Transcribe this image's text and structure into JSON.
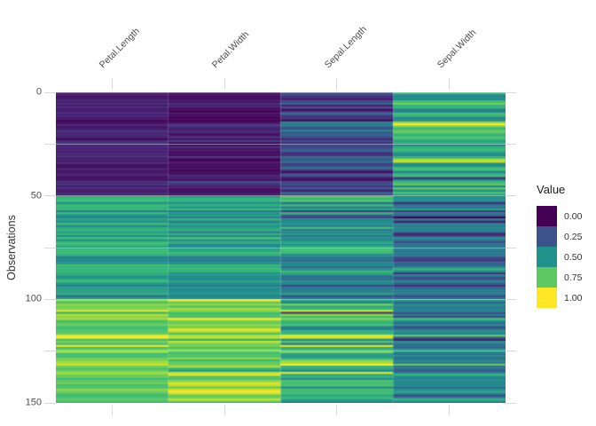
{
  "figure": {
    "background": "#ffffff",
    "grid_color": "#d9d9d9",
    "y_axis": {
      "title": "Observations",
      "tick_labels": [
        "0",
        "50",
        "100",
        "150"
      ],
      "tick_values": [
        0,
        50,
        100,
        150
      ]
    },
    "x_axis": {
      "labels": [
        "Petal.Length",
        "Petal.Width",
        "Sepal.Length",
        "Sepal.Width"
      ]
    },
    "legend": {
      "title": "Value",
      "entries": [
        {
          "label": "0.00",
          "color": "#440154"
        },
        {
          "label": "0.25",
          "color": "#3b528b"
        },
        {
          "label": "0.50",
          "color": "#21918c"
        },
        {
          "label": "0.75",
          "color": "#5ec962"
        },
        {
          "label": "1.00",
          "color": "#fde725"
        }
      ]
    }
  },
  "chart_data": {
    "type": "heatmap",
    "title": "",
    "ylabel": "Observations",
    "ylim": [
      0,
      150
    ],
    "y_major_ticks": [
      0,
      50,
      100,
      150
    ],
    "y_minor_ticks": [
      25,
      75,
      125
    ],
    "columns": [
      "Petal.Length",
      "Petal.Width",
      "Sepal.Length",
      "Sepal.Width"
    ],
    "colormap": "viridis",
    "value_scale": {
      "title": "Value",
      "range": [
        0,
        1
      ],
      "normalization": "per-column min-max rescale to 0-1"
    },
    "observations": [
      [
        1.4,
        0.2,
        5.1,
        3.5
      ],
      [
        1.4,
        0.2,
        4.9,
        3.0
      ],
      [
        1.3,
        0.2,
        4.7,
        3.2
      ],
      [
        1.5,
        0.2,
        4.6,
        3.1
      ],
      [
        1.4,
        0.2,
        5.0,
        3.6
      ],
      [
        1.7,
        0.4,
        5.4,
        3.9
      ],
      [
        1.4,
        0.3,
        4.6,
        3.4
      ],
      [
        1.5,
        0.2,
        5.0,
        3.4
      ],
      [
        1.4,
        0.2,
        4.4,
        2.9
      ],
      [
        1.5,
        0.1,
        4.9,
        3.1
      ],
      [
        1.5,
        0.2,
        5.4,
        3.7
      ],
      [
        1.6,
        0.2,
        4.8,
        3.4
      ],
      [
        1.4,
        0.1,
        4.8,
        3.0
      ],
      [
        1.1,
        0.1,
        4.3,
        3.0
      ],
      [
        1.2,
        0.2,
        5.8,
        4.0
      ],
      [
        1.5,
        0.4,
        5.7,
        4.4
      ],
      [
        1.3,
        0.4,
        5.4,
        3.9
      ],
      [
        1.4,
        0.3,
        5.1,
        3.5
      ],
      [
        1.7,
        0.3,
        5.7,
        3.8
      ],
      [
        1.5,
        0.3,
        5.1,
        3.8
      ],
      [
        1.7,
        0.2,
        5.4,
        3.4
      ],
      [
        1.5,
        0.4,
        5.1,
        3.7
      ],
      [
        1.0,
        0.2,
        4.6,
        3.6
      ],
      [
        1.7,
        0.5,
        5.1,
        3.3
      ],
      [
        1.9,
        0.2,
        4.8,
        3.4
      ],
      [
        1.6,
        0.2,
        5.0,
        3.0
      ],
      [
        1.6,
        0.4,
        5.0,
        3.4
      ],
      [
        1.5,
        0.2,
        5.2,
        3.5
      ],
      [
        1.4,
        0.2,
        5.2,
        3.4
      ],
      [
        1.6,
        0.2,
        4.7,
        3.2
      ],
      [
        1.6,
        0.2,
        4.8,
        3.1
      ],
      [
        1.5,
        0.4,
        5.4,
        3.4
      ],
      [
        1.5,
        0.1,
        5.2,
        4.1
      ],
      [
        1.4,
        0.2,
        5.5,
        4.2
      ],
      [
        1.5,
        0.2,
        4.9,
        3.1
      ],
      [
        1.2,
        0.2,
        5.0,
        3.2
      ],
      [
        1.3,
        0.2,
        5.5,
        3.5
      ],
      [
        1.4,
        0.1,
        4.9,
        3.6
      ],
      [
        1.3,
        0.2,
        4.4,
        3.0
      ],
      [
        1.5,
        0.2,
        5.1,
        3.4
      ],
      [
        1.3,
        0.3,
        5.0,
        3.5
      ],
      [
        1.3,
        0.3,
        4.5,
        2.3
      ],
      [
        1.3,
        0.2,
        4.4,
        3.2
      ],
      [
        1.6,
        0.6,
        5.0,
        3.5
      ],
      [
        1.9,
        0.4,
        5.1,
        3.8
      ],
      [
        1.4,
        0.3,
        4.8,
        3.0
      ],
      [
        1.6,
        0.2,
        5.1,
        3.8
      ],
      [
        1.4,
        0.2,
        4.6,
        3.2
      ],
      [
        1.5,
        0.2,
        5.3,
        3.7
      ],
      [
        1.4,
        0.2,
        5.0,
        3.3
      ],
      [
        4.7,
        1.4,
        7.0,
        3.2
      ],
      [
        4.5,
        1.5,
        6.4,
        3.2
      ],
      [
        4.9,
        1.5,
        6.9,
        3.1
      ],
      [
        4.0,
        1.3,
        5.5,
        2.3
      ],
      [
        4.6,
        1.5,
        6.5,
        2.8
      ],
      [
        4.5,
        1.3,
        5.7,
        2.8
      ],
      [
        4.7,
        1.6,
        6.3,
        3.3
      ],
      [
        3.3,
        1.0,
        4.9,
        2.4
      ],
      [
        4.6,
        1.3,
        6.6,
        2.9
      ],
      [
        3.9,
        1.4,
        5.2,
        2.7
      ],
      [
        3.5,
        1.0,
        5.0,
        2.0
      ],
      [
        4.2,
        1.5,
        5.9,
        3.0
      ],
      [
        4.0,
        1.0,
        6.0,
        2.2
      ],
      [
        4.7,
        1.4,
        6.1,
        2.9
      ],
      [
        3.6,
        1.3,
        5.6,
        2.9
      ],
      [
        4.4,
        1.4,
        6.7,
        3.1
      ],
      [
        4.5,
        1.5,
        5.6,
        3.0
      ],
      [
        4.1,
        1.0,
        5.8,
        2.7
      ],
      [
        4.5,
        1.5,
        6.2,
        2.2
      ],
      [
        3.9,
        1.1,
        5.6,
        2.5
      ],
      [
        4.8,
        1.8,
        5.9,
        3.2
      ],
      [
        4.0,
        1.3,
        6.1,
        2.8
      ],
      [
        4.9,
        1.5,
        6.3,
        2.5
      ],
      [
        4.7,
        1.2,
        6.1,
        2.8
      ],
      [
        4.3,
        1.3,
        6.4,
        2.9
      ],
      [
        4.4,
        1.4,
        6.6,
        3.0
      ],
      [
        4.8,
        1.4,
        6.8,
        2.8
      ],
      [
        5.0,
        1.7,
        6.7,
        3.0
      ],
      [
        4.5,
        1.5,
        6.0,
        2.9
      ],
      [
        3.5,
        1.0,
        5.7,
        2.6
      ],
      [
        3.8,
        1.1,
        5.5,
        2.4
      ],
      [
        3.7,
        1.0,
        5.5,
        2.4
      ],
      [
        3.9,
        1.2,
        5.8,
        2.7
      ],
      [
        5.1,
        1.6,
        6.0,
        2.7
      ],
      [
        4.5,
        1.5,
        5.4,
        3.0
      ],
      [
        4.5,
        1.6,
        6.0,
        3.4
      ],
      [
        4.7,
        1.5,
        6.7,
        3.1
      ],
      [
        4.4,
        1.3,
        6.3,
        2.3
      ],
      [
        4.1,
        1.3,
        5.6,
        3.0
      ],
      [
        4.0,
        1.3,
        5.5,
        2.5
      ],
      [
        4.4,
        1.2,
        5.5,
        2.6
      ],
      [
        4.6,
        1.4,
        6.1,
        3.0
      ],
      [
        4.0,
        1.2,
        5.8,
        2.6
      ],
      [
        3.3,
        1.0,
        5.0,
        2.3
      ],
      [
        4.2,
        1.3,
        5.6,
        2.7
      ],
      [
        4.2,
        1.2,
        5.7,
        3.0
      ],
      [
        4.2,
        1.3,
        5.7,
        2.9
      ],
      [
        4.3,
        1.3,
        6.2,
        2.9
      ],
      [
        3.0,
        1.1,
        5.1,
        2.5
      ],
      [
        4.1,
        1.3,
        5.7,
        2.8
      ],
      [
        6.0,
        2.5,
        6.3,
        3.3
      ],
      [
        5.1,
        1.9,
        5.8,
        2.7
      ],
      [
        5.9,
        2.1,
        7.1,
        3.0
      ],
      [
        5.6,
        1.8,
        6.3,
        2.9
      ],
      [
        5.8,
        2.2,
        6.5,
        3.0
      ],
      [
        6.6,
        2.1,
        7.6,
        3.0
      ],
      [
        4.5,
        1.7,
        4.9,
        2.5
      ],
      [
        6.3,
        1.8,
        7.3,
        2.9
      ],
      [
        5.8,
        1.8,
        6.7,
        2.5
      ],
      [
        6.1,
        2.5,
        7.2,
        3.6
      ],
      [
        5.1,
        2.0,
        6.5,
        3.2
      ],
      [
        5.3,
        1.9,
        6.4,
        2.7
      ],
      [
        5.5,
        2.1,
        6.8,
        3.0
      ],
      [
        5.0,
        2.0,
        5.7,
        2.5
      ],
      [
        5.1,
        2.4,
        5.8,
        2.8
      ],
      [
        5.3,
        2.3,
        6.4,
        3.2
      ],
      [
        5.5,
        1.8,
        6.5,
        3.0
      ],
      [
        6.7,
        2.2,
        7.7,
        3.8
      ],
      [
        6.9,
        2.3,
        7.7,
        2.6
      ],
      [
        5.0,
        1.5,
        6.0,
        2.2
      ],
      [
        5.7,
        2.3,
        6.9,
        3.2
      ],
      [
        4.9,
        2.0,
        5.6,
        2.8
      ],
      [
        6.7,
        2.0,
        7.7,
        2.8
      ],
      [
        4.9,
        1.8,
        6.3,
        2.7
      ],
      [
        5.7,
        2.1,
        6.7,
        3.3
      ],
      [
        6.0,
        1.8,
        7.2,
        3.2
      ],
      [
        4.8,
        1.8,
        6.2,
        2.8
      ],
      [
        4.9,
        1.8,
        6.1,
        3.0
      ],
      [
        5.6,
        2.1,
        6.4,
        2.8
      ],
      [
        5.8,
        1.6,
        7.2,
        3.0
      ],
      [
        6.1,
        1.9,
        7.4,
        2.8
      ],
      [
        6.4,
        2.0,
        7.9,
        3.8
      ],
      [
        5.6,
        2.2,
        6.4,
        2.8
      ],
      [
        5.1,
        1.5,
        6.3,
        2.8
      ],
      [
        5.6,
        1.4,
        6.1,
        2.6
      ],
      [
        6.1,
        2.3,
        7.7,
        3.0
      ],
      [
        5.6,
        2.4,
        6.3,
        3.4
      ],
      [
        5.5,
        1.8,
        6.4,
        3.1
      ],
      [
        4.8,
        1.8,
        6.0,
        3.0
      ],
      [
        5.4,
        2.1,
        6.9,
        3.1
      ],
      [
        5.6,
        2.4,
        6.7,
        3.1
      ],
      [
        5.1,
        2.3,
        6.9,
        3.1
      ],
      [
        5.1,
        1.9,
        5.8,
        2.7
      ],
      [
        5.9,
        2.3,
        6.8,
        3.2
      ],
      [
        5.7,
        2.5,
        6.7,
        3.3
      ],
      [
        5.2,
        2.3,
        6.7,
        3.0
      ],
      [
        5.0,
        1.9,
        6.3,
        2.5
      ],
      [
        5.2,
        2.0,
        6.5,
        3.0
      ],
      [
        5.4,
        2.3,
        6.2,
        3.4
      ],
      [
        5.1,
        1.8,
        5.9,
        3.0
      ]
    ]
  }
}
